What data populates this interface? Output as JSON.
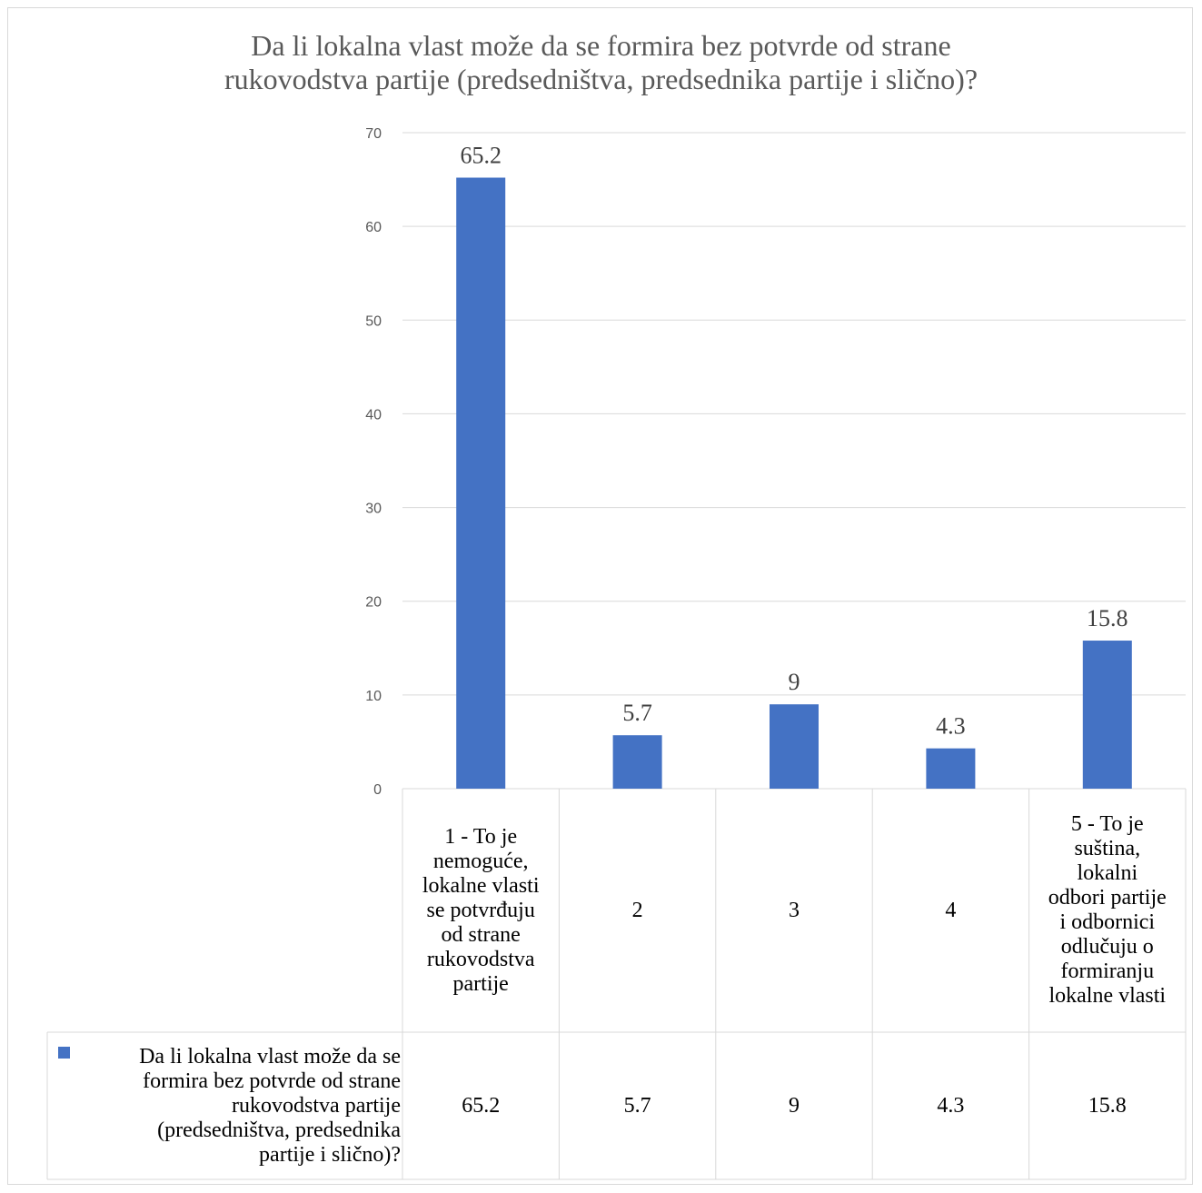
{
  "chart_data": {
    "type": "bar",
    "title": "Da li lokalna vlast može da se formira bez potvrde od strane rukovodstva partije (predsedništva, predsednika partije i slično)?",
    "title_lines": [
      "Da li lokalna vlast može da se formira bez potvrde od strane",
      "rukovodstva partije (predsedništva, predsednika partije i slično)?"
    ],
    "categories": [
      "1 - To je nemoguće, lokalne vlasti se potvrđuju od strane rukovodstva partije",
      "2",
      "3",
      "4",
      "5 - To je suština, lokalni odbori partije i odbornici odlučuju o formiranju lokalne vlasti"
    ],
    "category_lines": [
      [
        "1 - To je",
        "nemoguće,",
        "lokalne vlasti",
        "se potvrđuju",
        "od strane",
        "rukovodstva",
        "partije"
      ],
      [
        "2"
      ],
      [
        "3"
      ],
      [
        "4"
      ],
      [
        "5 - To je",
        "suština,",
        "lokalni",
        "odbori partije",
        "i odbornici",
        "odlučuju o",
        "formiranju",
        "lokalne vlasti"
      ]
    ],
    "series": [
      {
        "name": "Da li lokalna vlast može da se formira bez potvrde od strane rukovodstva partije (predsedništva, predsednika partije i slično)?",
        "name_lines": [
          "Da li lokalna vlast može da se",
          "formira bez potvrde od strane",
          "rukovodstva partije",
          "(predsedništva, predsednika",
          "partije i slično)?"
        ],
        "values": [
          65.2,
          5.7,
          9,
          4.3,
          15.8
        ],
        "value_labels": [
          "65.2",
          "5.7",
          "9",
          "4.3",
          "15.8"
        ],
        "color": "#4472c4"
      }
    ],
    "y_ticks": [
      "0",
      "10",
      "20",
      "30",
      "40",
      "50",
      "60",
      "70"
    ],
    "ylim": [
      0,
      70
    ],
    "grid": true,
    "legend": "data-table"
  }
}
